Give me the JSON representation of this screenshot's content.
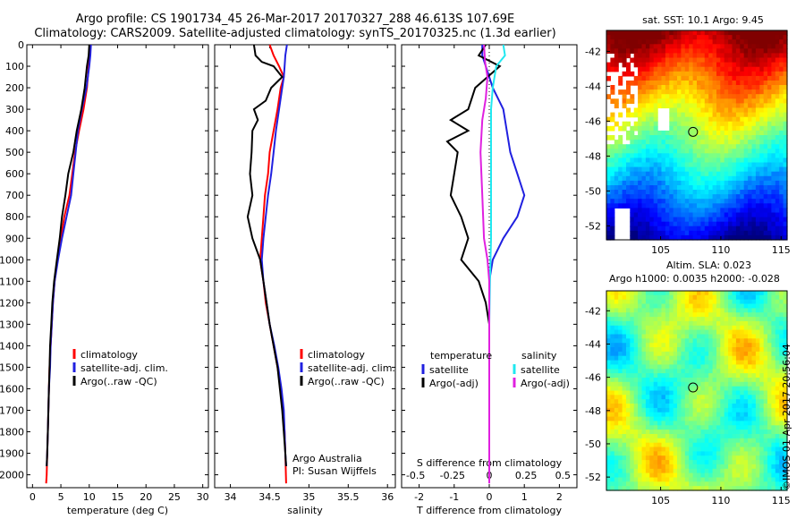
{
  "title": {
    "line1": "Argo profile: CS 1901734_45 26-Mar-2017 20170327_288 46.613S 107.69E",
    "line2": "Climatology: CARS2009. Satellite-adjusted climatology: synTS_20170325.nc (1.3d earlier)"
  },
  "stamp": "©IMOS 01-Apr-2017 20:56:04",
  "colors": {
    "black": "#000000",
    "red": "#ff0000",
    "blue": "#2020e0",
    "cyan": "#20e8f0",
    "magenta": "#e020e0"
  },
  "chart_data": [
    {
      "type": "line",
      "xlabel": "temperature (deg C)",
      "xlim": [
        -1,
        31
      ],
      "xticks": [
        0,
        5,
        10,
        15,
        20,
        25,
        30
      ],
      "ylim": [
        0,
        2060
      ],
      "yticks": [
        0,
        100,
        200,
        300,
        400,
        500,
        600,
        700,
        800,
        900,
        1000,
        1100,
        1200,
        1300,
        1400,
        1500,
        1600,
        1700,
        1800,
        1900,
        2000
      ],
      "legend": {
        "position": "center-right",
        "entries": [
          "climatology",
          "satellite-adj. clim.",
          "Argo(..raw -QC)"
        ]
      },
      "series": [
        {
          "name": "climatology",
          "color": "red",
          "points": [
            [
              10.1,
              0
            ],
            [
              10,
              50
            ],
            [
              9.9,
              100
            ],
            [
              9.6,
              200
            ],
            [
              9.0,
              300
            ],
            [
              8.2,
              400
            ],
            [
              7.5,
              500
            ],
            [
              7.0,
              600
            ],
            [
              6.5,
              700
            ],
            [
              5.6,
              800
            ],
            [
              5.0,
              900
            ],
            [
              4.4,
              1000
            ],
            [
              3.9,
              1100
            ],
            [
              3.6,
              1200
            ],
            [
              3.4,
              1300
            ],
            [
              3.2,
              1400
            ],
            [
              3.0,
              1500
            ],
            [
              2.9,
              1600
            ],
            [
              2.8,
              1700
            ],
            [
              2.7,
              1800
            ],
            [
              2.6,
              1900
            ],
            [
              2.5,
              2000
            ],
            [
              2.4,
              2040
            ]
          ]
        },
        {
          "name": "satellite-adj. clim.",
          "color": "blue",
          "points": [
            [
              10.3,
              0
            ],
            [
              10.2,
              50
            ],
            [
              10.0,
              100
            ],
            [
              9.5,
              200
            ],
            [
              8.7,
              300
            ],
            [
              8.0,
              400
            ],
            [
              7.6,
              500
            ],
            [
              7.2,
              600
            ],
            [
              6.8,
              700
            ],
            [
              6.0,
              800
            ],
            [
              5.2,
              900
            ],
            [
              4.5,
              1000
            ],
            [
              3.9,
              1100
            ],
            [
              3.6,
              1200
            ],
            [
              3.4,
              1300
            ],
            [
              3.2,
              1400
            ],
            [
              3.1,
              1500
            ],
            [
              2.9,
              1600
            ],
            [
              2.8,
              1700
            ],
            [
              2.7,
              1800
            ],
            [
              2.6,
              1900
            ],
            [
              2.5,
              1960
            ]
          ]
        },
        {
          "name": "Argo(..raw -QC)",
          "color": "black",
          "points": [
            [
              10.0,
              0
            ],
            [
              9.9,
              50
            ],
            [
              9.6,
              100
            ],
            [
              9.2,
              200
            ],
            [
              8.6,
              300
            ],
            [
              7.8,
              400
            ],
            [
              7.2,
              500
            ],
            [
              6.3,
              600
            ],
            [
              5.8,
              700
            ],
            [
              5.2,
              800
            ],
            [
              4.8,
              900
            ],
            [
              4.3,
              1000
            ],
            [
              3.8,
              1100
            ],
            [
              3.5,
              1200
            ],
            [
              3.3,
              1300
            ],
            [
              3.1,
              1400
            ],
            [
              3.0,
              1500
            ],
            [
              2.9,
              1600
            ],
            [
              2.8,
              1700
            ],
            [
              2.7,
              1800
            ],
            [
              2.6,
              1900
            ],
            [
              2.5,
              1960
            ]
          ]
        }
      ]
    },
    {
      "type": "line",
      "xlabel": "salinity",
      "xlim": [
        33.8,
        36.1
      ],
      "xticks": [
        34,
        34.5,
        35,
        35.5,
        36
      ],
      "ylim": [
        0,
        2060
      ],
      "legend": {
        "position": "center-right",
        "entries": [
          "climatology",
          "satellite-adj. clim.",
          "Argo(..raw -QC)"
        ]
      },
      "annotation": [
        "Argo Australia",
        "PI: Susan Wijffels"
      ],
      "series": [
        {
          "name": "climatology",
          "color": "red",
          "points": [
            [
              34.5,
              0
            ],
            [
              34.55,
              50
            ],
            [
              34.62,
              100
            ],
            [
              34.68,
              150
            ],
            [
              34.64,
              200
            ],
            [
              34.6,
              300
            ],
            [
              34.55,
              400
            ],
            [
              34.5,
              500
            ],
            [
              34.48,
              600
            ],
            [
              34.44,
              700
            ],
            [
              34.42,
              800
            ],
            [
              34.4,
              900
            ],
            [
              34.38,
              1000
            ],
            [
              34.42,
              1100
            ],
            [
              34.45,
              1200
            ],
            [
              34.5,
              1300
            ],
            [
              34.55,
              1400
            ],
            [
              34.6,
              1500
            ],
            [
              34.64,
              1600
            ],
            [
              34.67,
              1700
            ],
            [
              34.69,
              1800
            ],
            [
              34.7,
              1900
            ],
            [
              34.71,
              2040
            ]
          ]
        },
        {
          "name": "satellite-adj. clim.",
          "color": "blue",
          "points": [
            [
              34.72,
              0
            ],
            [
              34.7,
              50
            ],
            [
              34.69,
              100
            ],
            [
              34.68,
              150
            ],
            [
              34.66,
              200
            ],
            [
              34.62,
              300
            ],
            [
              34.58,
              400
            ],
            [
              34.55,
              500
            ],
            [
              34.52,
              600
            ],
            [
              34.48,
              700
            ],
            [
              34.45,
              800
            ],
            [
              34.42,
              900
            ],
            [
              34.4,
              1000
            ],
            [
              34.42,
              1100
            ],
            [
              34.46,
              1200
            ],
            [
              34.5,
              1300
            ],
            [
              34.56,
              1400
            ],
            [
              34.61,
              1500
            ],
            [
              34.65,
              1600
            ],
            [
              34.68,
              1700
            ],
            [
              34.69,
              1800
            ],
            [
              34.7,
              1900
            ],
            [
              34.71,
              1960
            ]
          ]
        },
        {
          "name": "Argo(..raw -QC)",
          "color": "black",
          "points": [
            [
              34.3,
              0
            ],
            [
              34.32,
              50
            ],
            [
              34.4,
              80
            ],
            [
              34.55,
              100
            ],
            [
              34.66,
              150
            ],
            [
              34.52,
              200
            ],
            [
              34.45,
              260
            ],
            [
              34.3,
              300
            ],
            [
              34.35,
              350
            ],
            [
              34.28,
              400
            ],
            [
              34.27,
              500
            ],
            [
              34.25,
              600
            ],
            [
              34.28,
              700
            ],
            [
              34.22,
              800
            ],
            [
              34.28,
              900
            ],
            [
              34.38,
              1000
            ],
            [
              34.42,
              1100
            ],
            [
              34.46,
              1200
            ],
            [
              34.5,
              1300
            ],
            [
              34.55,
              1400
            ],
            [
              34.6,
              1500
            ],
            [
              34.63,
              1600
            ],
            [
              34.66,
              1700
            ],
            [
              34.68,
              1800
            ],
            [
              34.7,
              1900
            ],
            [
              34.71,
              1960
            ]
          ]
        }
      ]
    },
    {
      "type": "line",
      "xlabel": "T difference from climatology",
      "xlabel_top": "S difference from climatology",
      "xlim": [
        -2.5,
        2.5
      ],
      "xticks": [
        -2,
        -1,
        0,
        1,
        2
      ],
      "xticks_top": [
        -0.5,
        -0.25,
        0,
        0.25,
        0.5
      ],
      "ylim": [
        0,
        2060
      ],
      "legend": {
        "position": "center",
        "headers": [
          "temperature",
          "salinity"
        ],
        "entries": [
          "satellite",
          "Argo(-adj)",
          "satellite",
          "Argo(-adj)"
        ]
      },
      "series": [
        {
          "name": "temperature satellite",
          "color": "blue",
          "points": [
            [
              -0.2,
              0
            ],
            [
              -0.2,
              50
            ],
            [
              -0.1,
              100
            ],
            [
              0.1,
              200
            ],
            [
              0.4,
              300
            ],
            [
              0.5,
              400
            ],
            [
              0.6,
              500
            ],
            [
              0.8,
              600
            ],
            [
              1.0,
              700
            ],
            [
              0.8,
              800
            ],
            [
              0.4,
              900
            ],
            [
              0.1,
              1000
            ],
            [
              0,
              1100
            ],
            [
              0,
              1200
            ],
            [
              0,
              1400
            ],
            [
              0,
              1600
            ],
            [
              0,
              1800
            ],
            [
              0,
              1960
            ]
          ]
        },
        {
          "name": "temperature Argo(-adj)",
          "color": "black",
          "points": [
            [
              -0.1,
              0
            ],
            [
              -0.3,
              50
            ],
            [
              0.3,
              100
            ],
            [
              -0.4,
              200
            ],
            [
              -0.6,
              300
            ],
            [
              -1.1,
              350
            ],
            [
              -0.6,
              400
            ],
            [
              -1.2,
              450
            ],
            [
              -0.9,
              500
            ],
            [
              -1.0,
              600
            ],
            [
              -1.1,
              700
            ],
            [
              -0.8,
              800
            ],
            [
              -0.6,
              900
            ],
            [
              -0.8,
              1000
            ],
            [
              -0.3,
              1100
            ],
            [
              -0.1,
              1200
            ],
            [
              0,
              1300
            ],
            [
              0,
              1500
            ],
            [
              0,
              1700
            ],
            [
              0,
              1960
            ]
          ]
        },
        {
          "name": "salinity satellite",
          "color": "cyan",
          "points": [
            [
              0.4,
              0
            ],
            [
              0.45,
              50
            ],
            [
              0.2,
              100
            ],
            [
              0.1,
              200
            ],
            [
              0.05,
              300
            ],
            [
              0.05,
              500
            ],
            [
              0.05,
              700
            ],
            [
              0.05,
              900
            ],
            [
              0.02,
              1100
            ],
            [
              0,
              1300
            ],
            [
              0,
              1600
            ],
            [
              0,
              1960
            ]
          ]
        },
        {
          "name": "salinity Argo(-adj)",
          "color": "magenta",
          "points": [
            [
              -0.15,
              0
            ],
            [
              -0.12,
              80
            ],
            [
              -0.05,
              150
            ],
            [
              -0.1,
              250
            ],
            [
              -0.2,
              350
            ],
            [
              -0.25,
              500
            ],
            [
              -0.2,
              700
            ],
            [
              -0.15,
              900
            ],
            [
              -0.05,
              1000
            ],
            [
              0,
              1100
            ],
            [
              0,
              1400
            ],
            [
              0,
              1800
            ],
            [
              0,
              2040
            ]
          ]
        }
      ]
    },
    {
      "type": "heatmap",
      "title": "sat. SST: 10.1 Argo: 9.45",
      "xlim": [
        100.5,
        115.5
      ],
      "ylim": [
        -52.8,
        -40.8
      ],
      "xticks": [
        105,
        110,
        115
      ],
      "yticks": [
        -42,
        -44,
        -46,
        -48,
        -50,
        -52
      ],
      "marker": {
        "lon": 107.69,
        "lat": -46.613
      },
      "palette": "jet"
    },
    {
      "type": "heatmap",
      "title": "Altim. SLA: 0.023",
      "subtitle": "Argo h1000: 0.0035 h2000: -0.028",
      "xlim": [
        100.5,
        115.5
      ],
      "ylim": [
        -52.8,
        -40.8
      ],
      "xticks": [
        105,
        110,
        115
      ],
      "yticks": [
        -42,
        -44,
        -46,
        -48,
        -50,
        -52
      ],
      "marker": {
        "lon": 107.69,
        "lat": -46.613
      },
      "palette": "jet"
    }
  ]
}
